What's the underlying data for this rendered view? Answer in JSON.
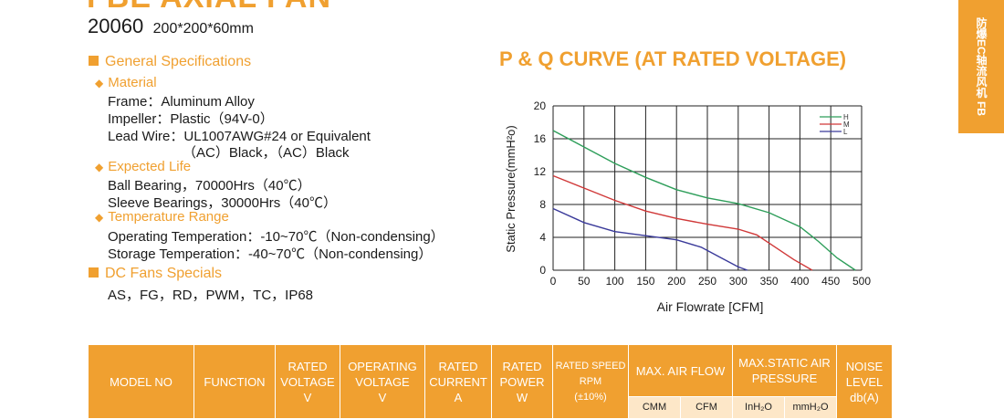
{
  "header": {
    "series_title": "FBE AXIAL FAN",
    "model": "20060",
    "size": "200*200*60mm",
    "side_tab": "防爆EC轴流风机 FB"
  },
  "specs": {
    "general_title": "General Specifications",
    "material_title": "Material",
    "frame": "Frame：Aluminum Alloy",
    "impeller": "Impeller：Plastic（94V-0）",
    "lead_wire": "Lead Wire：UL1007AWG#24 or Equivalent",
    "lead_wire_2": "（AC）Black，（AC）Black",
    "life_title": "Expected Life",
    "ball": "Ball Bearing，70000Hrs（40℃）",
    "sleeve": "Sleeve Bearings，30000Hrs（40℃）",
    "temp_title": "Temperature Range",
    "operating_temp": "Operating Temperation：-10~70℃（Non-condensing）",
    "storage_temp": "Storage Temperation：-40~70℃（Non-condensing）",
    "dc_title": "DC Fans Specials",
    "dc_list": "AS，FG，RD，PWM，TC，IP68"
  },
  "colors": {
    "accent": "#f0a030",
    "H": "#2e9e5a",
    "M": "#d03838",
    "L": "#3a3a9a"
  },
  "chart_data": {
    "type": "line",
    "title": "P & Q CURVE (AT RATED VOLTAGE)",
    "xlabel": "Air  Flowrate  [CFM]",
    "ylabel": "Static Pressure(mmH²o)",
    "xlim": [
      0,
      500
    ],
    "ylim": [
      0,
      20
    ],
    "x_ticks": [
      "0",
      "50",
      "100",
      "150",
      "200",
      "250",
      "300",
      "350",
      "400",
      "450",
      "500"
    ],
    "y_ticks": [
      "0",
      "4",
      "8",
      "12",
      "16",
      "20"
    ],
    "grid": true,
    "legend_position": "top-right",
    "series": [
      {
        "name": "H",
        "points": [
          [
            0,
            17
          ],
          [
            50,
            15
          ],
          [
            100,
            13
          ],
          [
            150,
            11.3
          ],
          [
            200,
            9.8
          ],
          [
            250,
            8.8
          ],
          [
            300,
            8.1
          ],
          [
            350,
            7
          ],
          [
            400,
            5.3
          ],
          [
            430,
            3.5
          ],
          [
            460,
            1.5
          ],
          [
            490,
            0
          ]
        ]
      },
      {
        "name": "M",
        "points": [
          [
            0,
            11.5
          ],
          [
            50,
            10
          ],
          [
            100,
            8.5
          ],
          [
            150,
            7.2
          ],
          [
            200,
            6.3
          ],
          [
            250,
            5.6
          ],
          [
            300,
            5
          ],
          [
            330,
            4.3
          ],
          [
            360,
            2.8
          ],
          [
            390,
            1.3
          ],
          [
            420,
            0
          ]
        ]
      },
      {
        "name": "L",
        "points": [
          [
            0,
            7.5
          ],
          [
            50,
            5.8
          ],
          [
            100,
            4.7
          ],
          [
            150,
            4.2
          ],
          [
            200,
            3.7
          ],
          [
            240,
            2.8
          ],
          [
            270,
            1.6
          ],
          [
            300,
            0.4
          ],
          [
            315,
            0
          ]
        ]
      }
    ]
  },
  "table": {
    "headers": [
      [
        "MODEL NO"
      ],
      [
        "FUNCTION"
      ],
      [
        "RATED",
        "VOLTAGE",
        "V"
      ],
      [
        "OPERATING",
        "VOLTAGE",
        "V"
      ],
      [
        "RATED",
        "CURRENT",
        "A"
      ],
      [
        "RATED",
        "POWER",
        "W"
      ],
      [
        "RATED SPEED",
        "RPM",
        "(±10%)"
      ]
    ],
    "max_air_flow": "MAX. AIR FLOW",
    "max_static": [
      "MAX.STATIC AIR",
      "PRESSURE"
    ],
    "noise": [
      "NOISE",
      "LEVEL",
      "db(A)"
    ],
    "sub_headers": [
      "CMM",
      "CFM",
      "InH₂O",
      "mmH₂O"
    ]
  }
}
